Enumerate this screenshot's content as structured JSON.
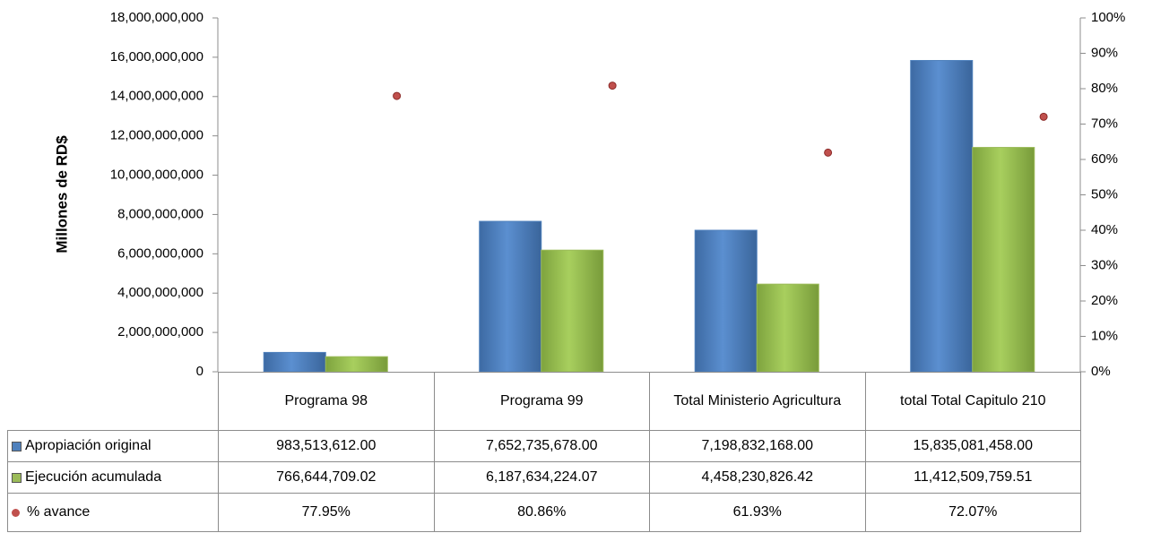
{
  "chart_data": {
    "type": "bar",
    "y_label": "Millones de RD$",
    "categories": [
      "Programa 98",
      "Programa 99",
      "Total Ministerio Agricultura",
      "total Total Capitulo 210"
    ],
    "series": [
      {
        "name": "Apropiación original",
        "color": "#4f81bd",
        "type": "bar",
        "values": [
          983513612.0,
          7652735678.0,
          7198832168.0,
          15835081458.0
        ],
        "value_labels": [
          "983,513,612.00",
          "7,652,735,678.00",
          "7,198,832,168.00",
          "15,835,081,458.00"
        ]
      },
      {
        "name": "Ejecución acumulada",
        "color": "#9bbb59",
        "type": "bar",
        "values": [
          766644709.02,
          6187634224.07,
          4458230826.42,
          11412509759.51
        ],
        "value_labels": [
          "766,644,709.02",
          "6,187,634,224.07",
          "4,458,230,826.42",
          "11,412,509,759.51"
        ]
      },
      {
        "name": "% avance",
        "color": "#c0504d",
        "type": "scatter",
        "axis": "y2",
        "values": [
          77.95,
          80.86,
          61.93,
          72.07
        ],
        "value_labels": [
          "77.95%",
          "80.86%",
          "61.93%",
          "72.07%"
        ]
      }
    ],
    "ylim": [
      0,
      18000000000
    ],
    "yticks": [
      0,
      {
        "value": 2000000000,
        "label": "2,000,000,000"
      },
      {
        "value": 4000000000,
        "label": "4,000,000,000"
      },
      {
        "value": 6000000000,
        "label": "6,000,000,000"
      },
      {
        "value": 8000000000,
        "label": "8,000,000,000"
      },
      {
        "value": 10000000000,
        "label": "10,000,000,000"
      },
      {
        "value": 12000000000,
        "label": "12,000,000,000"
      },
      {
        "value": 14000000000,
        "label": "14,000,000,000"
      },
      {
        "value": 16000000000,
        "label": "16,000,000,000"
      },
      {
        "value": 18000000000,
        "label": "18,000,000,000"
      }
    ],
    "y2lim": [
      0,
      100
    ],
    "y2ticks": [
      {
        "value": 0,
        "label": "0%"
      },
      {
        "value": 10,
        "label": "10%"
      },
      {
        "value": 20,
        "label": "20%"
      },
      {
        "value": 30,
        "label": "30%"
      },
      {
        "value": 40,
        "label": "40%"
      },
      {
        "value": 50,
        "label": "50%"
      },
      {
        "value": 60,
        "label": "60%"
      },
      {
        "value": 70,
        "label": "70%"
      },
      {
        "value": 80,
        "label": "80%"
      },
      {
        "value": 90,
        "label": "90%"
      },
      {
        "value": 100,
        "label": "100%"
      }
    ],
    "grid": false,
    "data_table": true
  }
}
